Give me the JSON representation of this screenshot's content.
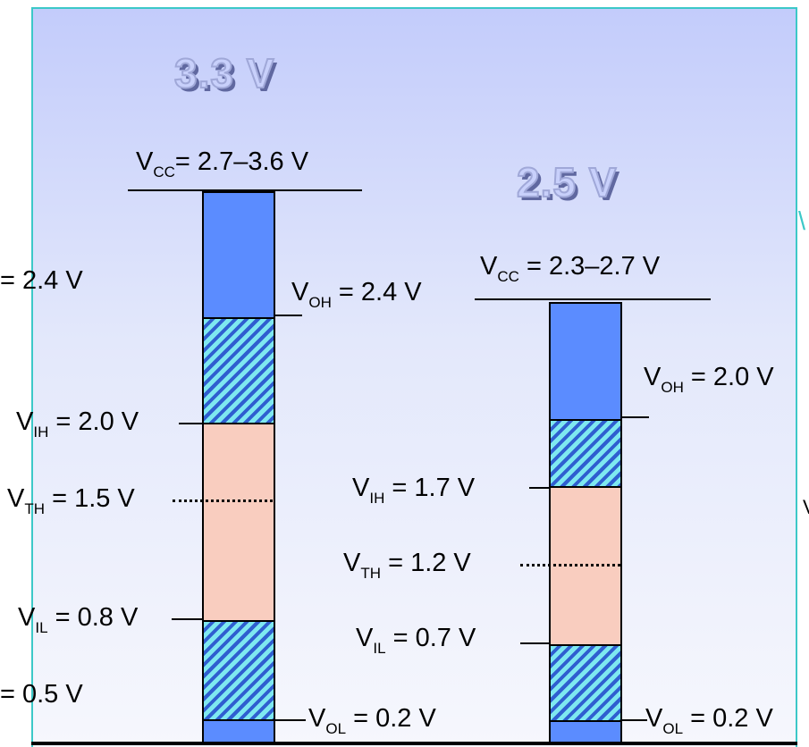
{
  "left": {
    "title": "3.3 V",
    "vcc": {
      "sym": "V",
      "sub": "CC",
      "text": "= 2.7–3.6 V"
    },
    "voh": {
      "sym": "V",
      "sub": "OH",
      "text": " = 2.4 V"
    },
    "vih": {
      "sym": "V",
      "sub": "IH",
      "text": " = 2.0 V"
    },
    "vth": {
      "sym": "V",
      "sub": "TH",
      "text": " = 1.5 V"
    },
    "vil": {
      "sym": "V",
      "sub": "IL",
      "text": " = 0.8 V"
    },
    "vol": {
      "sym": "V",
      "sub": "OL",
      "text": " = 0.2 V"
    },
    "cut_top": "= 2.4 V",
    "cut_bottom": "= 0.5 V"
  },
  "right": {
    "title": "2.5 V",
    "vcc": {
      "sym": "V",
      "sub": "CC",
      "text": " = 2.3–2.7 V"
    },
    "voh": {
      "sym": "V",
      "sub": "OH",
      "text": " = 2.0 V"
    },
    "vih": {
      "sym": "V",
      "sub": "IH",
      "text": " = 1.7 V"
    },
    "vth": {
      "sym": "V",
      "sub": "TH",
      "text": " = 1.2 V"
    },
    "vil": {
      "sym": "V",
      "sub": "IL",
      "text": " = 0.7 V"
    },
    "vol": {
      "sym": "V",
      "sub": "OL",
      "text": " = 0.2 V"
    }
  },
  "colors": {
    "output_region": "#5b8cff",
    "transition_region": "hatched cyan/blue",
    "input_undefined_region": "#f9cdbf"
  }
}
